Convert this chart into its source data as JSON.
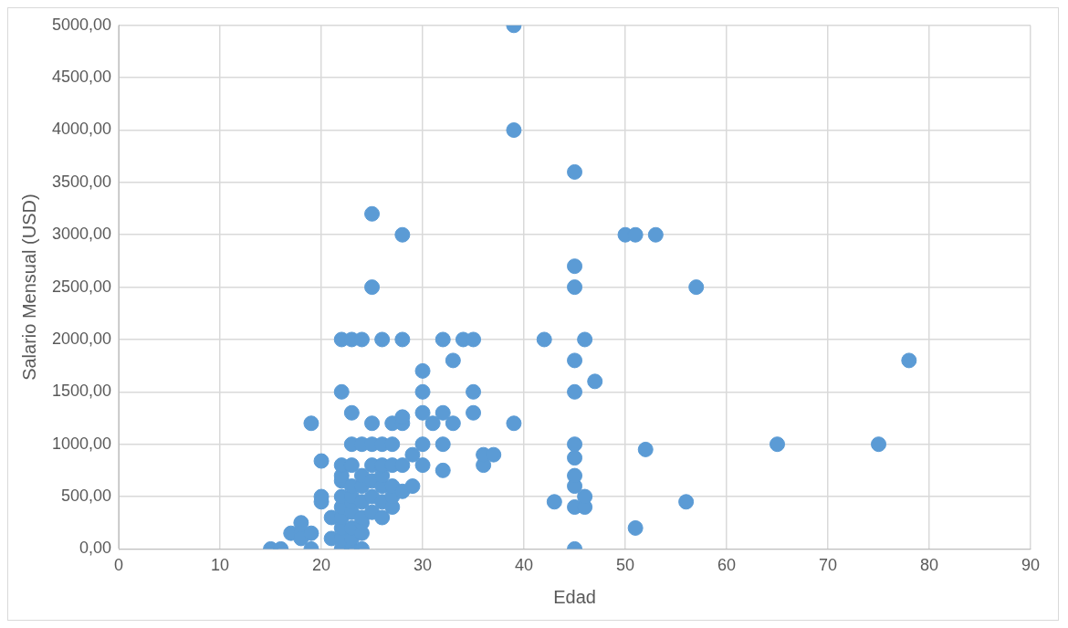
{
  "chart_data": {
    "type": "scatter",
    "xlabel": "Edad",
    "ylabel": "Salario Mensual (USD)",
    "marker": "circle",
    "grid": true,
    "legend": false,
    "xlim": [
      0,
      90
    ],
    "xticks": [
      0,
      10,
      20,
      30,
      40,
      50,
      60,
      70,
      80,
      90
    ],
    "ylim": [
      0,
      5000
    ],
    "yticks": [
      {
        "value": 0,
        "label": "0,00"
      },
      {
        "value": 500,
        "label": "500,00"
      },
      {
        "value": 1000,
        "label": "1000,00"
      },
      {
        "value": 1500,
        "label": "1500,00"
      },
      {
        "value": 2000,
        "label": "2000,00"
      },
      {
        "value": 2500,
        "label": "2500,00"
      },
      {
        "value": 3000,
        "label": "3000,00"
      },
      {
        "value": 3500,
        "label": "3500,00"
      },
      {
        "value": 4000,
        "label": "4000,00"
      },
      {
        "value": 4500,
        "label": "4500,00"
      },
      {
        "value": 5000,
        "label": "5000,00"
      }
    ],
    "series": [
      {
        "color": "#5b9bd5",
        "x": [
          15,
          16,
          17,
          18,
          18,
          18,
          19,
          19,
          19,
          20,
          20,
          20,
          21,
          21,
          22,
          22,
          22,
          22,
          22,
          22,
          22,
          22,
          22,
          22,
          22,
          23,
          23,
          23,
          23,
          23,
          23,
          23,
          23,
          23,
          23,
          23,
          24,
          24,
          24,
          24,
          24,
          24,
          24,
          24,
          24,
          25,
          25,
          25,
          25,
          25,
          25,
          25,
          25,
          26,
          26,
          26,
          26,
          26,
          26,
          26,
          27,
          27,
          27,
          27,
          27,
          27,
          28,
          28,
          28,
          28,
          28,
          28,
          29,
          29,
          30,
          30,
          30,
          30,
          30,
          31,
          32,
          32,
          32,
          32,
          33,
          33,
          34,
          35,
          35,
          35,
          36,
          36,
          37,
          39,
          39,
          39,
          42,
          43,
          45,
          45,
          45,
          45,
          45,
          45,
          45,
          45,
          45,
          45,
          45,
          46,
          46,
          46,
          47,
          50,
          51,
          51,
          52,
          53,
          56,
          57,
          65,
          75,
          78
        ],
        "values": [
          0,
          0,
          150,
          250,
          150,
          100,
          150,
          0,
          1200,
          840,
          500,
          450,
          300,
          100,
          0,
          100,
          200,
          300,
          400,
          500,
          650,
          700,
          800,
          1500,
          2000,
          0,
          100,
          200,
          350,
          450,
          500,
          600,
          800,
          1000,
          1300,
          2000,
          0,
          150,
          250,
          300,
          450,
          600,
          700,
          1000,
          2000,
          350,
          500,
          650,
          800,
          1000,
          1200,
          2500,
          3200,
          300,
          450,
          600,
          700,
          800,
          1000,
          2000,
          400,
          500,
          600,
          800,
          1000,
          1200,
          550,
          800,
          1200,
          1260,
          2000,
          3000,
          600,
          900,
          800,
          1000,
          1300,
          1500,
          1700,
          1200,
          750,
          1000,
          1300,
          2000,
          1200,
          1800,
          2000,
          1300,
          1500,
          2000,
          800,
          900,
          900,
          1200,
          4000,
          5000,
          2000,
          450,
          0,
          400,
          600,
          700,
          870,
          1000,
          1500,
          1800,
          2500,
          2700,
          3600,
          400,
          500,
          2000,
          1600,
          3000,
          3000,
          200,
          950,
          3000,
          450,
          2500,
          1000,
          1000,
          1800
        ]
      }
    ]
  }
}
